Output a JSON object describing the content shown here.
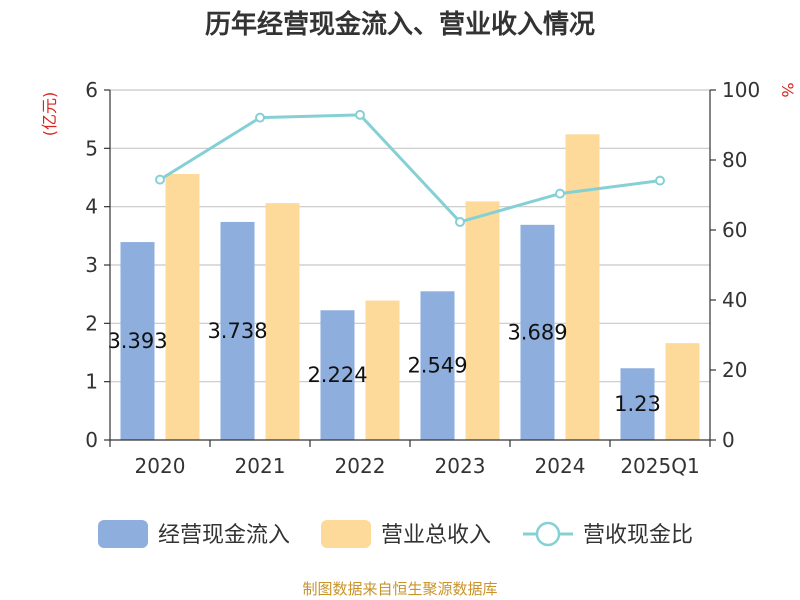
{
  "chart_data": {
    "type": "bar",
    "title": "历年经营现金流入、营业收入情况",
    "categories": [
      "2020",
      "2021",
      "2022",
      "2023",
      "2024",
      "2025Q1"
    ],
    "y_left": {
      "unit": "(亿元)",
      "min": 0,
      "max": 6,
      "ticks": [
        "0",
        "1",
        "2",
        "3",
        "4",
        "5",
        "6"
      ]
    },
    "y_right": {
      "unit": "%",
      "min": 0,
      "max": 100,
      "ticks": [
        "0",
        "20",
        "40",
        "60",
        "80",
        "100"
      ]
    },
    "grid": true,
    "legend_position": "bottom",
    "series": [
      {
        "name": "经营现金流入",
        "type": "bar",
        "axis": "left",
        "color": "#8eaedd",
        "values": [
          3.393,
          3.738,
          2.224,
          2.549,
          3.689,
          1.23
        ],
        "labels": [
          "3.393",
          "3.738",
          "2.224",
          "2.549",
          "3.689",
          "1.23"
        ]
      },
      {
        "name": "营业总收入",
        "type": "bar",
        "axis": "left",
        "color": "#fdd99a",
        "values": [
          4.56,
          4.06,
          2.39,
          4.09,
          5.24,
          1.66
        ]
      },
      {
        "name": "营收现金比",
        "type": "line",
        "axis": "right",
        "color": "#85d0d5",
        "values": [
          74.4,
          92.1,
          92.9,
          62.3,
          70.4,
          74.1
        ]
      }
    ],
    "source": "制图数据来自恒生聚源数据库"
  }
}
